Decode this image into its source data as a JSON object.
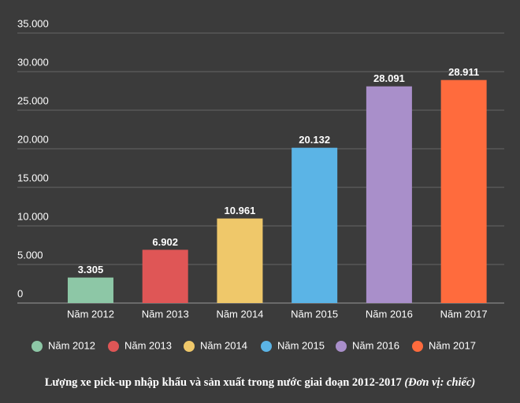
{
  "chart_data": {
    "type": "bar",
    "title": "Lượng xe pick-up nhập khẩu và sản xuất trong nước giai đoạn 2012-2017",
    "subtitle": "(Đơn vị: chiếc)",
    "categories": [
      "Năm 2012",
      "Năm 2013",
      "Năm 2014",
      "Năm 2015",
      "Năm 2016",
      "Năm 2017"
    ],
    "values": [
      3305,
      6902,
      10961,
      20132,
      28091,
      28911
    ],
    "value_labels": [
      "3.305",
      "6.902",
      "10.961",
      "20.132",
      "28.091",
      "28.911"
    ],
    "colors": [
      "#8dc7a6",
      "#df5656",
      "#efc86a",
      "#5bb4e6",
      "#a98fca",
      "#ff6b3d"
    ],
    "ylim": [
      0,
      35000
    ],
    "yticks": [
      0,
      {
        "value": 5000,
        "label": "5.000"
      },
      {
        "value": 10000,
        "label": "10.000"
      },
      {
        "value": 15000,
        "label": "15.000"
      },
      {
        "value": 20000,
        "label": "20.000"
      },
      {
        "value": 25000,
        "label": "25.000"
      },
      {
        "value": 30000,
        "label": "30.000"
      },
      {
        "value": 35000,
        "label": "35.000"
      }
    ],
    "grid": true
  }
}
